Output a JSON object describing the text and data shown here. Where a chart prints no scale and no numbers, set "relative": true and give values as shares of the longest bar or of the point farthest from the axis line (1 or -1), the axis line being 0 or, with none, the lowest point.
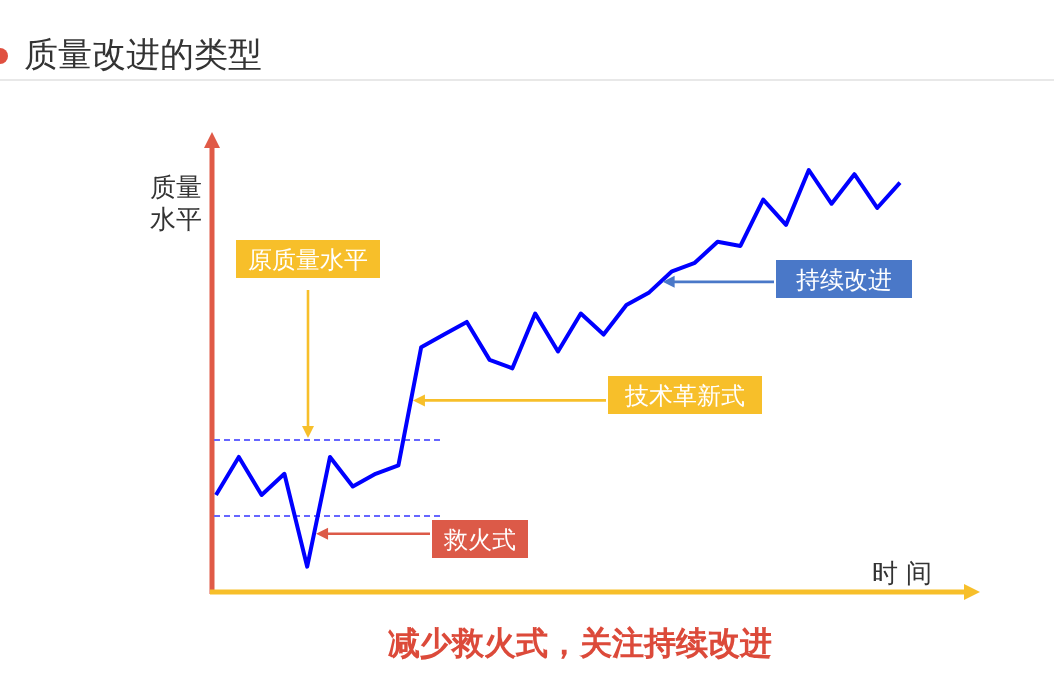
{
  "chart_data": {
    "type": "line",
    "title": "质量改进的类型",
    "xlabel": "时 间",
    "ylabel": "质量水平",
    "relative": true,
    "categories": [
      null,
      null,
      null,
      null,
      null,
      null,
      null,
      null,
      null,
      null,
      null,
      null,
      null,
      null,
      null,
      null,
      null,
      null,
      null,
      null,
      null,
      null,
      null,
      null,
      null,
      null,
      null,
      null,
      null,
      null,
      null
    ],
    "series": [
      {
        "color": "#0000ff",
        "values": [
          0.23,
          0.32,
          0.23,
          0.28,
          0.06,
          0.32,
          0.25,
          0.28,
          0.3,
          0.58,
          0.61,
          0.64,
          0.55,
          0.53,
          0.66,
          0.57,
          0.66,
          0.61,
          0.68,
          0.71,
          0.76,
          0.78,
          0.83,
          0.82,
          0.93,
          0.87,
          1,
          0.92,
          0.99,
          0.91,
          0.97
        ]
      }
    ],
    "ref_lines": [
      {
        "axis": "y",
        "value": 0.36,
        "color": "#6666ff",
        "line_style": "dashed"
      },
      {
        "axis": "y",
        "value": 0.18,
        "color": "#6666ff",
        "line_style": "dashed"
      }
    ],
    "annotations": [
      "原质量水平",
      "技术革新式",
      "持续改进",
      "救火式",
      "减少救火式，关注持续改进"
    ]
  }
}
